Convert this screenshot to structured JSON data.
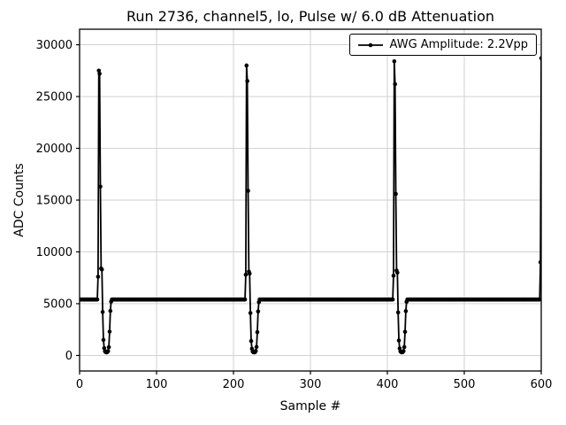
{
  "chart_data": {
    "type": "line",
    "title": "Run 2736, channel5, lo, Pulse w/ 6.0 dB Attenuation",
    "xlabel": "Sample #",
    "ylabel": "ADC Counts",
    "legend": [
      "AWG Amplitude: 2.2Vpp"
    ],
    "legend_position": "upper right",
    "grid": true,
    "line_color": "#000000",
    "marker": "point",
    "xlim": [
      0,
      600
    ],
    "ylim": [
      -1500,
      31500
    ],
    "xticks": [
      0,
      100,
      200,
      300,
      400,
      500,
      600
    ],
    "yticks": [
      0,
      5000,
      10000,
      15000,
      20000,
      25000,
      30000
    ],
    "n_samples": 601,
    "baseline_value": 5400,
    "pulses": [
      {
        "start": 24,
        "values": [
          7600,
          27500,
          27200,
          16300,
          8400,
          8300,
          4200,
          1500,
          700,
          400,
          320,
          300,
          330,
          420,
          800,
          2300,
          4300,
          5200
        ]
      },
      {
        "start": 216,
        "values": [
          7800,
          28000,
          26500,
          15900,
          8100,
          7900,
          4100,
          1400,
          650,
          380,
          310,
          300,
          320,
          430,
          820,
          2250,
          4250,
          5150
        ]
      },
      {
        "start": 408,
        "values": [
          7700,
          28400,
          26200,
          15600,
          8200,
          8000,
          4150,
          1450,
          680,
          390,
          315,
          305,
          325,
          425,
          810,
          2280,
          4280,
          5180
        ]
      },
      {
        "start": 599,
        "values": [
          9000,
          28700
        ]
      }
    ]
  }
}
